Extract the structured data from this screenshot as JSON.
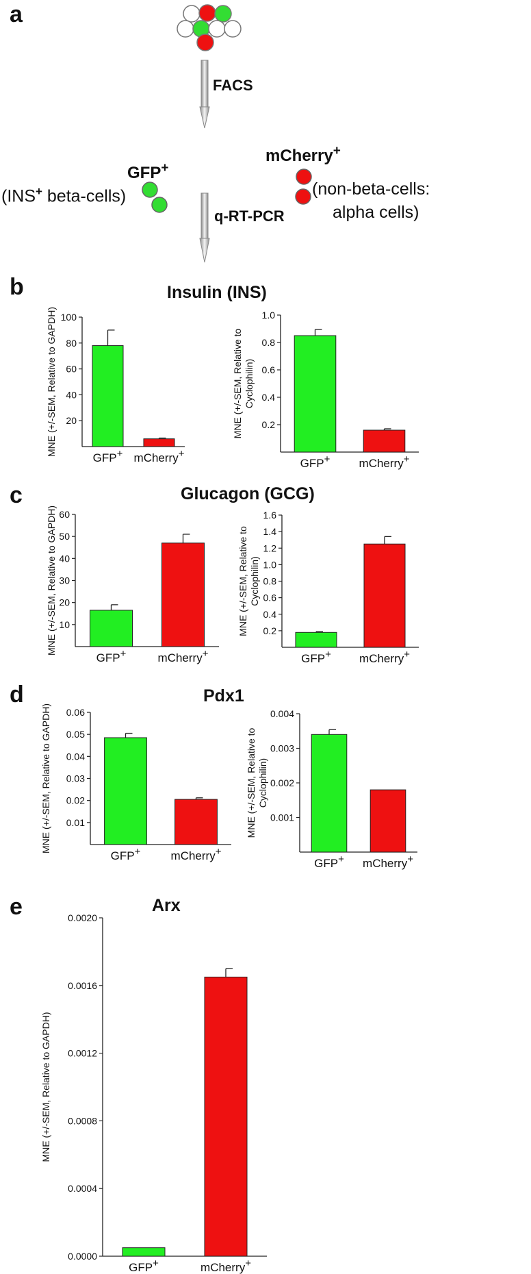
{
  "panel_a": {
    "letter": "a",
    "facs_label": "FACS",
    "qpcr_label": "q-RT-PCR",
    "gfp_label": "GFP",
    "gfp_sup": "+",
    "gfp_desc_prefix": "(INS",
    "gfp_desc_sup": "+",
    "gfp_desc_suffix": " beta-cells)",
    "mcherry_label": "mCherry",
    "mcherry_sup": "+",
    "mcherry_desc_line1": "(non-beta-cells:",
    "mcherry_desc_line2": "alpha cells)",
    "colors": {
      "gfp": "#33dd33",
      "mcherry": "#ee1111",
      "empty": "#ffffff"
    }
  },
  "panel_b": {
    "letter": "b",
    "title": "Insulin (INS)"
  },
  "panel_c": {
    "letter": "c",
    "title": "Glucagon (GCG)"
  },
  "panel_d": {
    "letter": "d",
    "title": "Pdx1"
  },
  "panel_e": {
    "letter": "e",
    "title": "Arx"
  },
  "ylabel_gapdh": "MNE (+/-SEM, Relative to GAPDH)",
  "ylabel_cyclo_line1": "MNE (+/-SEM, Relative to",
  "ylabel_cyclo_line2": "Cyclophilin)",
  "chart_data": [
    {
      "id": "b-left",
      "type": "bar",
      "categories": [
        "GFP+",
        "mCherry+"
      ],
      "values": [
        78,
        6
      ],
      "errors": [
        12,
        0.6
      ],
      "ylim": [
        0,
        100
      ],
      "ticks": [
        "20",
        "40",
        "60",
        "80",
        "100"
      ],
      "ylabel": "MNE (+/-SEM, Relative to GAPDH)",
      "colors": [
        "#22ee22",
        "#ee1111"
      ]
    },
    {
      "id": "b-right",
      "type": "bar",
      "categories": [
        "GFP+",
        "mCherry+"
      ],
      "values": [
        0.85,
        0.16
      ],
      "errors": [
        0.045,
        0.01
      ],
      "ylim": [
        0,
        1.0
      ],
      "ticks": [
        "0.2",
        "0.4",
        "0.6",
        "0.8",
        "1.0"
      ],
      "ylabel": "MNE (+/-SEM, Relative to Cyclophilin)",
      "colors": [
        "#22ee22",
        "#ee1111"
      ]
    },
    {
      "id": "c-left",
      "type": "bar",
      "categories": [
        "GFP+",
        "mCherry+"
      ],
      "values": [
        16.5,
        47
      ],
      "errors": [
        2.5,
        4
      ],
      "ylim": [
        0,
        60
      ],
      "ticks": [
        "10",
        "20",
        "30",
        "40",
        "50",
        "60"
      ],
      "ylabel": "MNE (+/-SEM, Relative to GAPDH)",
      "colors": [
        "#22ee22",
        "#ee1111"
      ]
    },
    {
      "id": "c-right",
      "type": "bar",
      "categories": [
        "GFP+",
        "mCherry+"
      ],
      "values": [
        0.18,
        1.25
      ],
      "errors": [
        0.01,
        0.09
      ],
      "ylim": [
        0,
        1.6
      ],
      "ticks": [
        "0.2",
        "0.4",
        "0.6",
        "0.8",
        "1.0",
        "1.2",
        "1.4",
        "1.6"
      ],
      "ylabel": "MNE (+/-SEM, Relative to Cyclophilin)",
      "colors": [
        "#22ee22",
        "#ee1111"
      ]
    },
    {
      "id": "d-left",
      "type": "bar",
      "categories": [
        "GFP+",
        "mCherry+"
      ],
      "values": [
        0.0485,
        0.0205
      ],
      "errors": [
        0.002,
        0.0007
      ],
      "ylim": [
        0,
        0.06
      ],
      "ticks": [
        "0.01",
        "0.02",
        "0.03",
        "0.04",
        "0.05",
        "0.06"
      ],
      "ylabel": "MNE (+/-SEM, Relative to GAPDH)",
      "colors": [
        "#22ee22",
        "#ee1111"
      ]
    },
    {
      "id": "d-right",
      "type": "bar",
      "categories": [
        "GFP+",
        "mCherry+"
      ],
      "values": [
        0.0034,
        0.0018
      ],
      "errors": [
        0.00014,
        0
      ],
      "ylim": [
        0,
        0.004
      ],
      "ticks": [
        "0.001",
        "0.002",
        "0.003",
        "0.004"
      ],
      "ylabel": "MNE (+/-SEM, Relative to Cyclophilin)",
      "colors": [
        "#22ee22",
        "#ee1111"
      ]
    },
    {
      "id": "e",
      "type": "bar",
      "categories": [
        "GFP+",
        "mCherry+"
      ],
      "values": [
        5e-05,
        0.00165
      ],
      "errors": [
        0,
        5e-05
      ],
      "ylim": [
        0,
        0.002
      ],
      "ticks": [
        "0.0000",
        "0.0004",
        "0.0008",
        "0.0012",
        "0.0016",
        "0.0020"
      ],
      "ylabel": "MNE (+/-SEM, Relative to GAPDH)",
      "colors": [
        "#22ee22",
        "#ee1111"
      ]
    }
  ]
}
